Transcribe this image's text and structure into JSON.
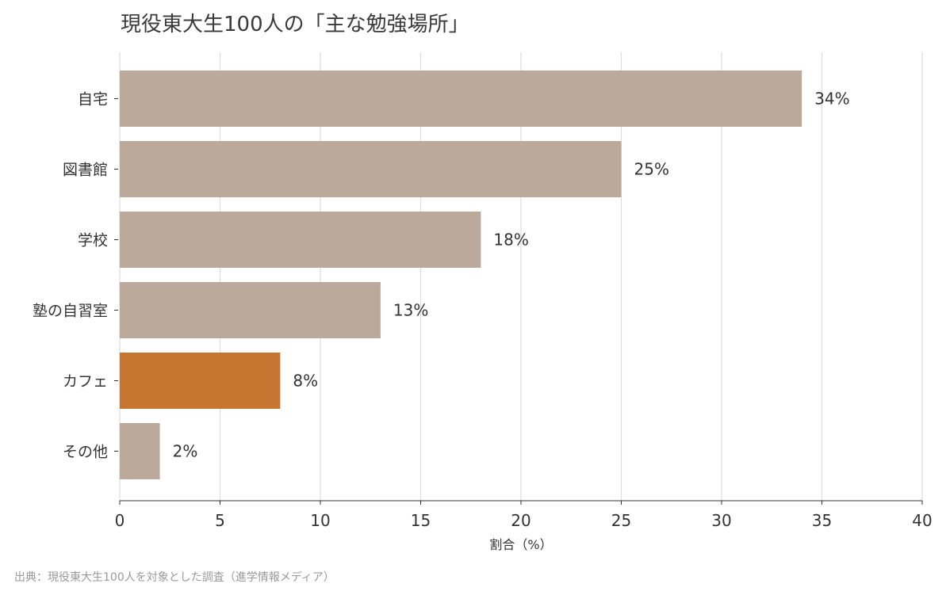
{
  "chart_data": {
    "type": "bar",
    "orientation": "horizontal",
    "title": "現役東大生100人の「主な勉強場所」",
    "categories": [
      "自宅",
      "図書館",
      "学校",
      "塾の自習室",
      "カフェ",
      "その他"
    ],
    "values": [
      34,
      25,
      18,
      13,
      8,
      2
    ],
    "value_labels": [
      "34%",
      "25%",
      "18%",
      "13%",
      "8%",
      "2%"
    ],
    "highlight_category": "カフェ",
    "xlabel": "割合（%）",
    "ylabel": "",
    "xlim": [
      0,
      40
    ],
    "xticks": [
      0,
      5,
      10,
      15,
      20,
      25,
      30,
      35,
      40
    ],
    "grid": "vertical",
    "legend": "none"
  },
  "colors": {
    "bar": "#bba99b",
    "highlight": "#c67631",
    "grid": "#dddddd",
    "text": "#333333",
    "title": "#3a3a3a",
    "source": "#999999"
  },
  "source_note": "出典：現役東大生100人を対象とした調査（進学情報メディア）"
}
